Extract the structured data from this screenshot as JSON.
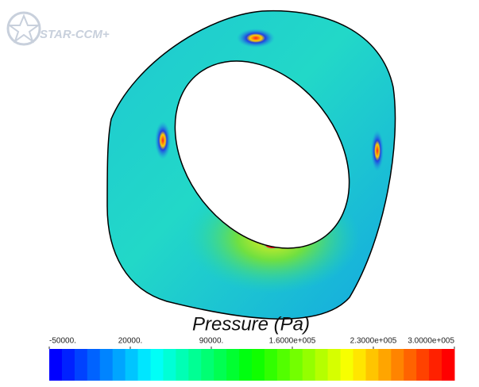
{
  "logo": {
    "text": "STAR-CCM+"
  },
  "colorbar": {
    "title": "Pressure (Pa)",
    "range": [
      -50000,
      300000
    ],
    "ticks": [
      {
        "value": -50000,
        "label": "-50000."
      },
      {
        "value": 20000,
        "label": "20000."
      },
      {
        "value": 90000,
        "label": "90000."
      },
      {
        "value": 160000,
        "label": "1.6000e+005"
      },
      {
        "value": 230000,
        "label": "2.3000e+005"
      },
      {
        "value": 300000,
        "label": "3.0000e+005"
      }
    ]
  }
}
